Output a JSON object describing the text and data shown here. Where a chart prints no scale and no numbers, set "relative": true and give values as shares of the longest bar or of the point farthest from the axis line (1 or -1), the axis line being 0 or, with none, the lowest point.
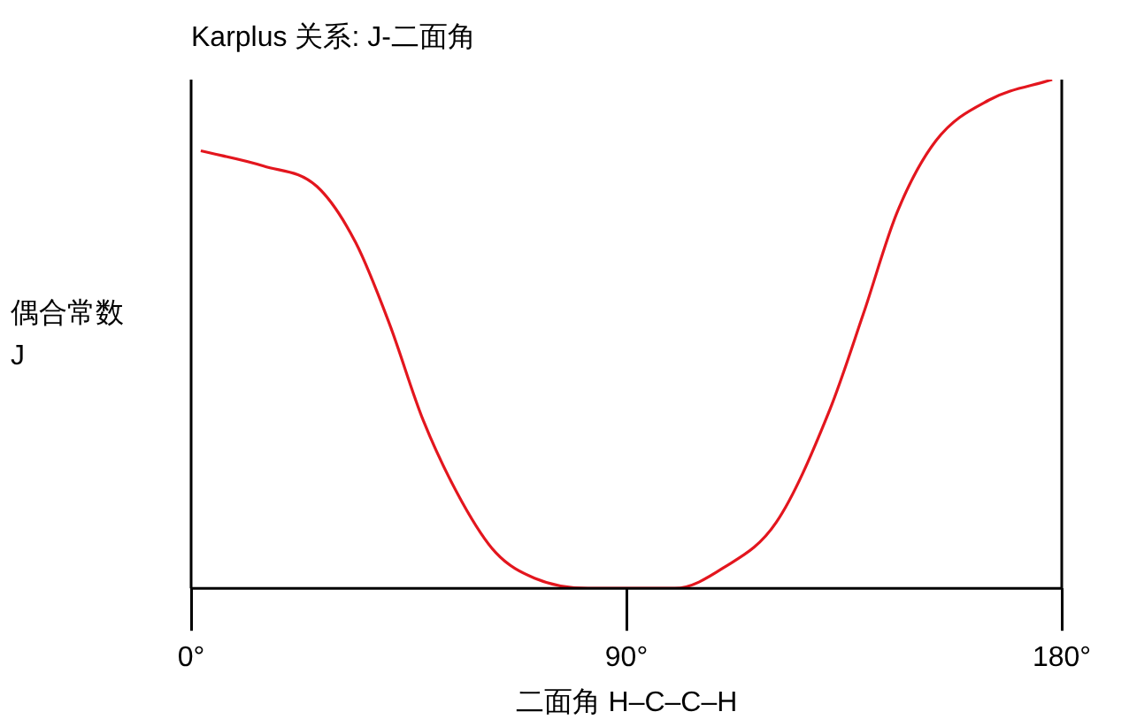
{
  "chart_data": {
    "type": "line",
    "relative": true,
    "title": "Karplus 关系: J-二面角",
    "xlabel": "二面角 H–C–C–H",
    "ylabel": "偶合常数 J",
    "xlim": [
      0,
      180
    ],
    "xticks": [
      {
        "value": 0,
        "label": "0°"
      },
      {
        "value": 90,
        "label": "90°"
      },
      {
        "value": 180,
        "label": "180°"
      }
    ],
    "grid": false,
    "legend": false,
    "marker": "none",
    "line_style": "solid",
    "series": [
      {
        "color": "#e3161e",
        "x": [
          2,
          15,
          26,
          34,
          41,
          48,
          56,
          63,
          71,
          82,
          90,
          100,
          110,
          121,
          132,
          139,
          146,
          154,
          165,
          178
        ],
        "values": [
          0.86,
          0.83,
          0.79,
          0.68,
          0.52,
          0.33,
          0.17,
          0.07,
          0.02,
          0,
          0,
          0,
          0.04,
          0.13,
          0.35,
          0.54,
          0.74,
          0.88,
          0.96,
          1
        ]
      }
    ]
  }
}
